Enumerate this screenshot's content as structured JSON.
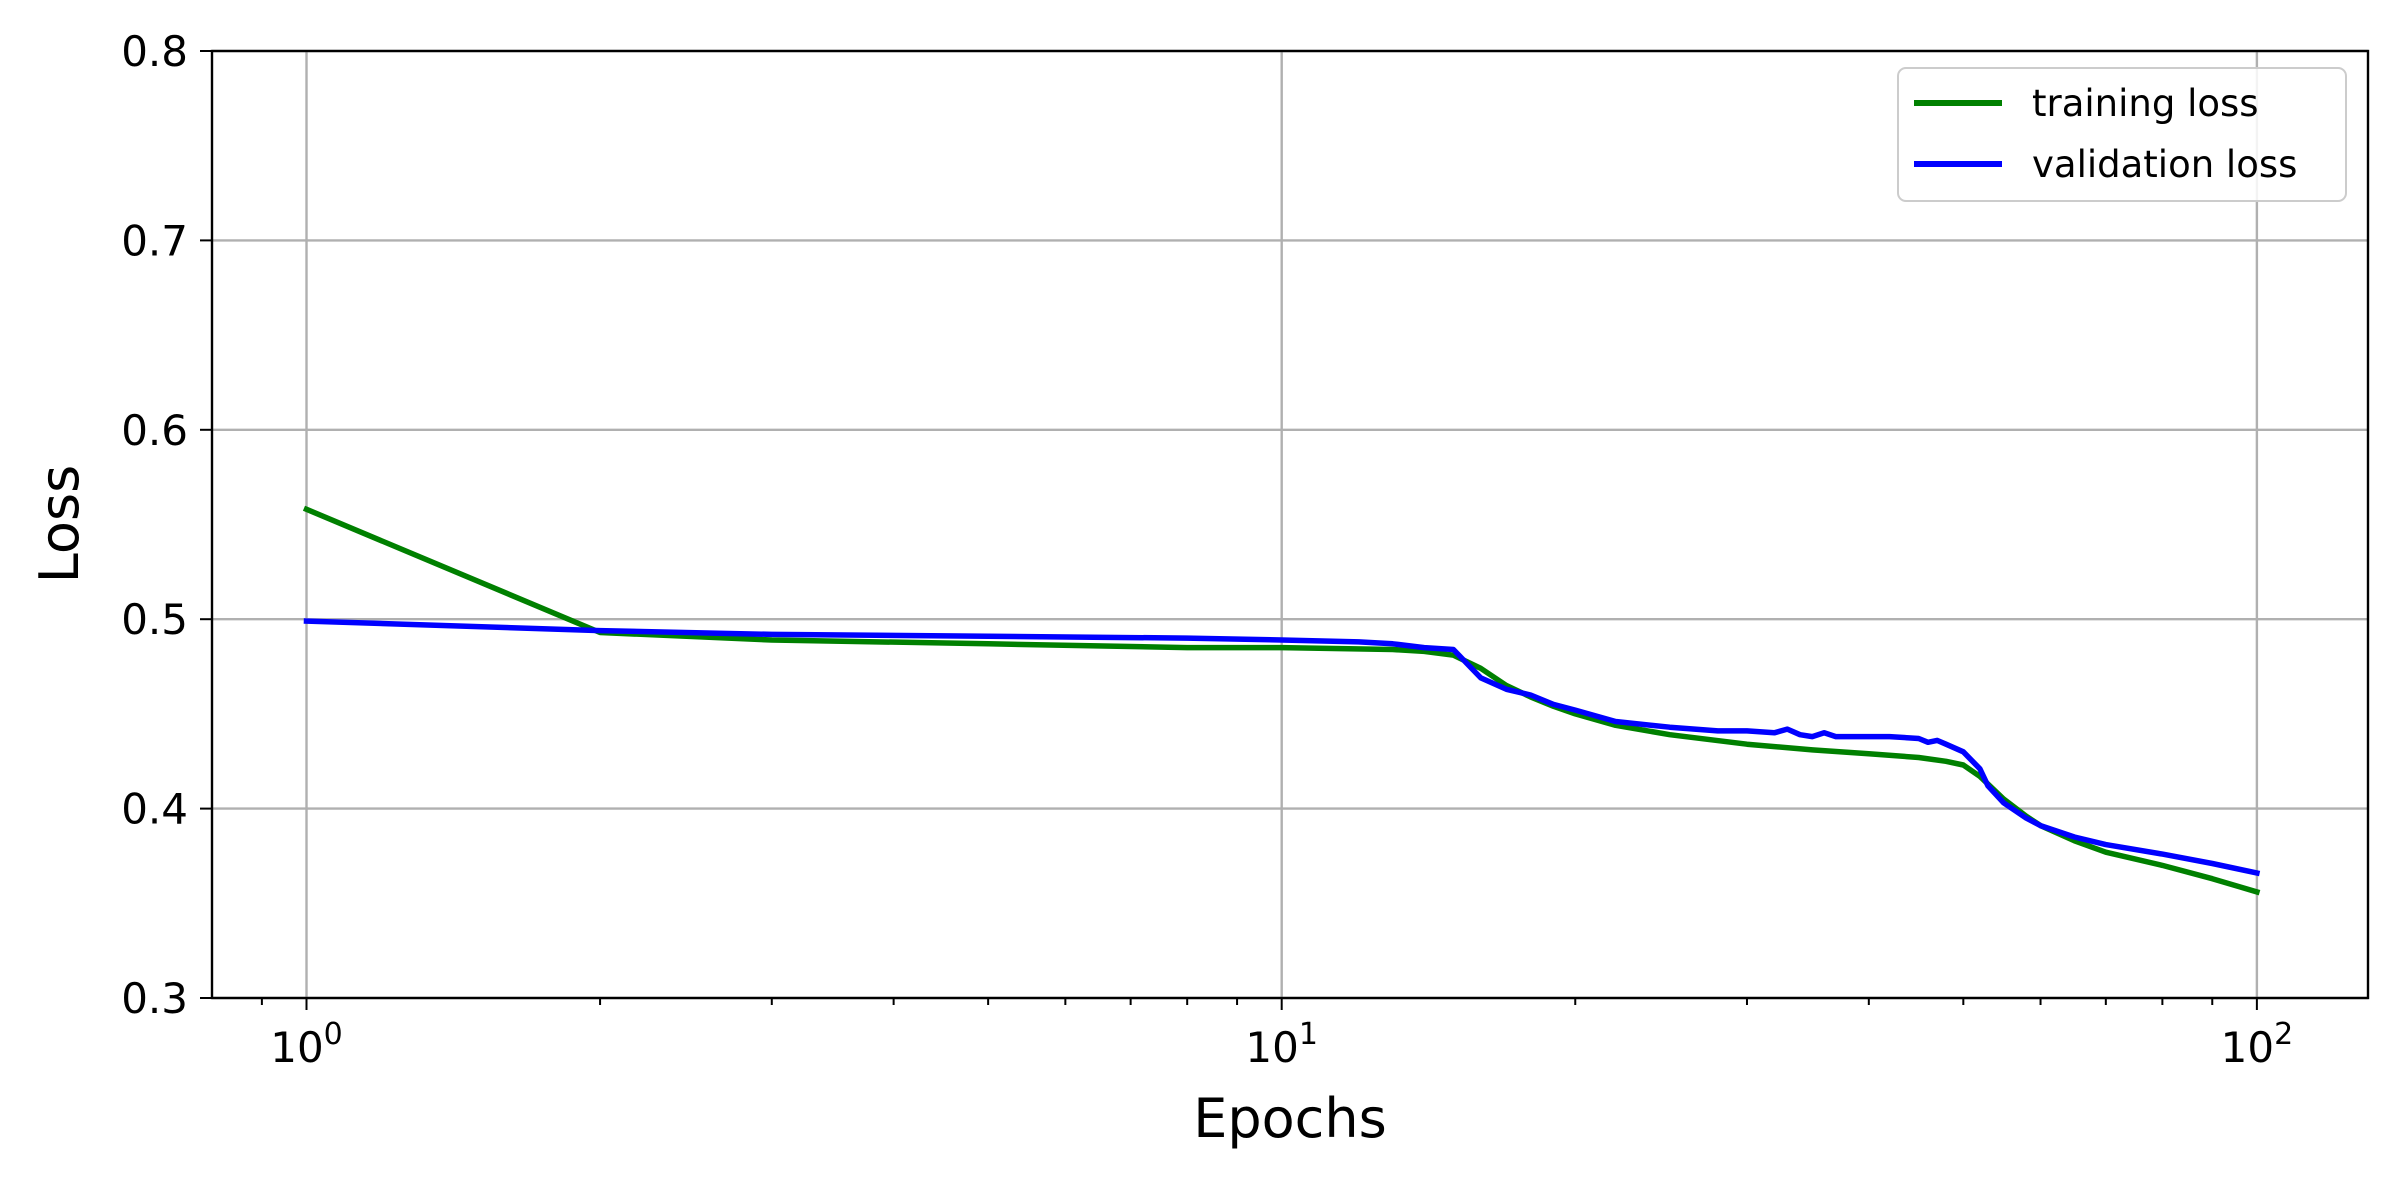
{
  "chart_data": {
    "type": "line",
    "title": "",
    "xlabel": "Epochs",
    "ylabel": "Loss",
    "xscale": "log",
    "xlim": [
      0.8,
      130
    ],
    "ylim": [
      0.3,
      0.8
    ],
    "grid": true,
    "legend_position": "top-right",
    "x_ticks": [
      {
        "value": 1,
        "base": "10",
        "exp": "0"
      },
      {
        "value": 10,
        "base": "10",
        "exp": "1"
      },
      {
        "value": 100,
        "base": "10",
        "exp": "2"
      }
    ],
    "y_ticks": [
      "0.3",
      "0.4",
      "0.5",
      "0.6",
      "0.7",
      "0.8"
    ],
    "series": [
      {
        "name": "training loss",
        "color": "#008000",
        "x": [
          1,
          2,
          3,
          5,
          8,
          10,
          13,
          14,
          15,
          16,
          17,
          18,
          19,
          20,
          22,
          25,
          30,
          35,
          40,
          45,
          48,
          50,
          52,
          55,
          58,
          60,
          65,
          70,
          80,
          90,
          100
        ],
        "y": [
          0.558,
          0.493,
          0.489,
          0.487,
          0.485,
          0.485,
          0.484,
          0.483,
          0.481,
          0.474,
          0.465,
          0.459,
          0.454,
          0.45,
          0.444,
          0.439,
          0.434,
          0.431,
          0.429,
          0.427,
          0.425,
          0.423,
          0.417,
          0.405,
          0.396,
          0.391,
          0.383,
          0.377,
          0.37,
          0.363,
          0.356
        ]
      },
      {
        "name": "validation loss",
        "color": "#0000ff",
        "x": [
          1,
          2,
          3,
          5,
          8,
          10,
          12,
          13,
          14,
          15,
          16,
          17,
          18,
          19,
          20,
          22,
          25,
          28,
          30,
          32,
          33,
          34,
          35,
          36,
          37,
          38,
          40,
          42,
          45,
          46,
          47,
          48,
          50,
          52,
          53,
          55,
          58,
          60,
          65,
          70,
          80,
          90,
          100
        ],
        "y": [
          0.499,
          0.494,
          0.492,
          0.491,
          0.49,
          0.489,
          0.488,
          0.487,
          0.485,
          0.484,
          0.469,
          0.463,
          0.46,
          0.455,
          0.452,
          0.446,
          0.443,
          0.441,
          0.441,
          0.44,
          0.442,
          0.439,
          0.438,
          0.44,
          0.438,
          0.438,
          0.438,
          0.438,
          0.437,
          0.435,
          0.436,
          0.434,
          0.43,
          0.421,
          0.412,
          0.403,
          0.395,
          0.391,
          0.385,
          0.381,
          0.376,
          0.371,
          0.366
        ]
      }
    ]
  }
}
